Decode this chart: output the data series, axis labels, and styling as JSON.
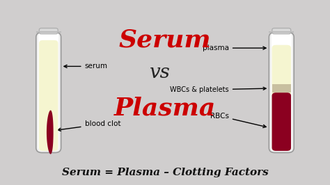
{
  "background_color": "#d0cece",
  "title_serum": "Serum",
  "title_vs": "vs",
  "title_plasma": "Plasma",
  "bottom_text": "Serum = Plasma – Clotting Factors",
  "serum_label": "serum",
  "blood_clot_label": "blood clot",
  "plasma_label": "plasma",
  "wbc_label": "WBCs & platelets",
  "rbc_label": "RBCs",
  "color_serum_liquid": "#f5f5d0",
  "color_blood": "#8b0020",
  "color_wbc": "#d0c8b0",
  "color_tube_outline": "#888888",
  "color_tube_fill": "#ffffff",
  "color_red_text": "#cc0000",
  "color_black_text": "#111111",
  "color_vs_text": "#222222"
}
